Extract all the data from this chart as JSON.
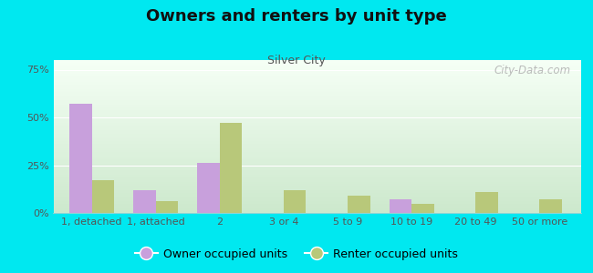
{
  "title": "Owners and renters by unit type",
  "subtitle": "Silver City",
  "categories": [
    "1, detached",
    "1, attached",
    "2",
    "3 or 4",
    "5 to 9",
    "10 to 19",
    "20 to 49",
    "50 or more"
  ],
  "owner_values": [
    57,
    12,
    26,
    0,
    0,
    7,
    0,
    0
  ],
  "renter_values": [
    17,
    6,
    47,
    12,
    9,
    5,
    11,
    7
  ],
  "owner_color": "#c8a0dc",
  "renter_color": "#b8c87a",
  "background_outer": "#00e8f0",
  "background_inner_top": "#f5fff5",
  "background_inner_bottom": "#cce8cc",
  "ylim": [
    0,
    80
  ],
  "yticks": [
    0,
    25,
    50,
    75
  ],
  "ytick_labels": [
    "0%",
    "25%",
    "50%",
    "75%"
  ],
  "bar_width": 0.35,
  "legend_owner": "Owner occupied units",
  "legend_renter": "Renter occupied units",
  "watermark": "City-Data.com",
  "title_fontsize": 13,
  "subtitle_fontsize": 9,
  "tick_fontsize": 8,
  "legend_fontsize": 9
}
